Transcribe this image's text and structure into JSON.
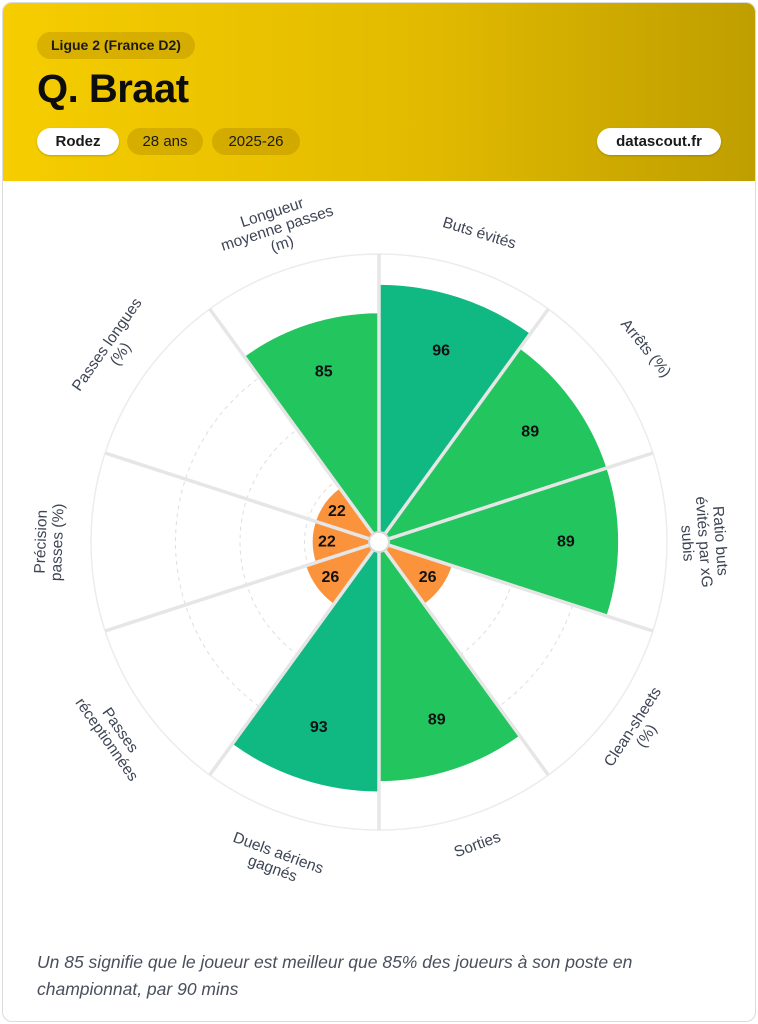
{
  "header": {
    "league": "Ligue 2 (France D2)",
    "player": "Q. Braat",
    "club": "Rodez",
    "age": "28 ans",
    "season": "2025-26",
    "site": "datascout.fr"
  },
  "chart_data": {
    "type": "polar-bar",
    "range": [
      0,
      100
    ],
    "start": "top, clockwise",
    "series": [
      {
        "label": "Buts évités",
        "value": 96
      },
      {
        "label": "Arrêts (%)",
        "value": 89
      },
      {
        "label": "Ratio buts évités par xG subis",
        "value": 89
      },
      {
        "label": "Clean-sheets (%)",
        "value": 26
      },
      {
        "label": "Sorties",
        "value": 89
      },
      {
        "label": "Duels aériens gagnés",
        "value": 93
      },
      {
        "label": "Passes réceptionnées",
        "value": 26
      },
      {
        "label": "Précision passes (%)",
        "value": 22
      },
      {
        "label": "Passes longues (%)",
        "value": 22
      },
      {
        "label": "Longueur moyenne passes (m)",
        "value": 85
      }
    ],
    "colors": {
      "elite": "#10b981",
      "good": "#22c55e",
      "low": "#fb923c"
    }
  },
  "footnote": "Un 85 signifie que le joueur est meilleur que 85% des joueurs à son poste en championnat, par 90 mins"
}
